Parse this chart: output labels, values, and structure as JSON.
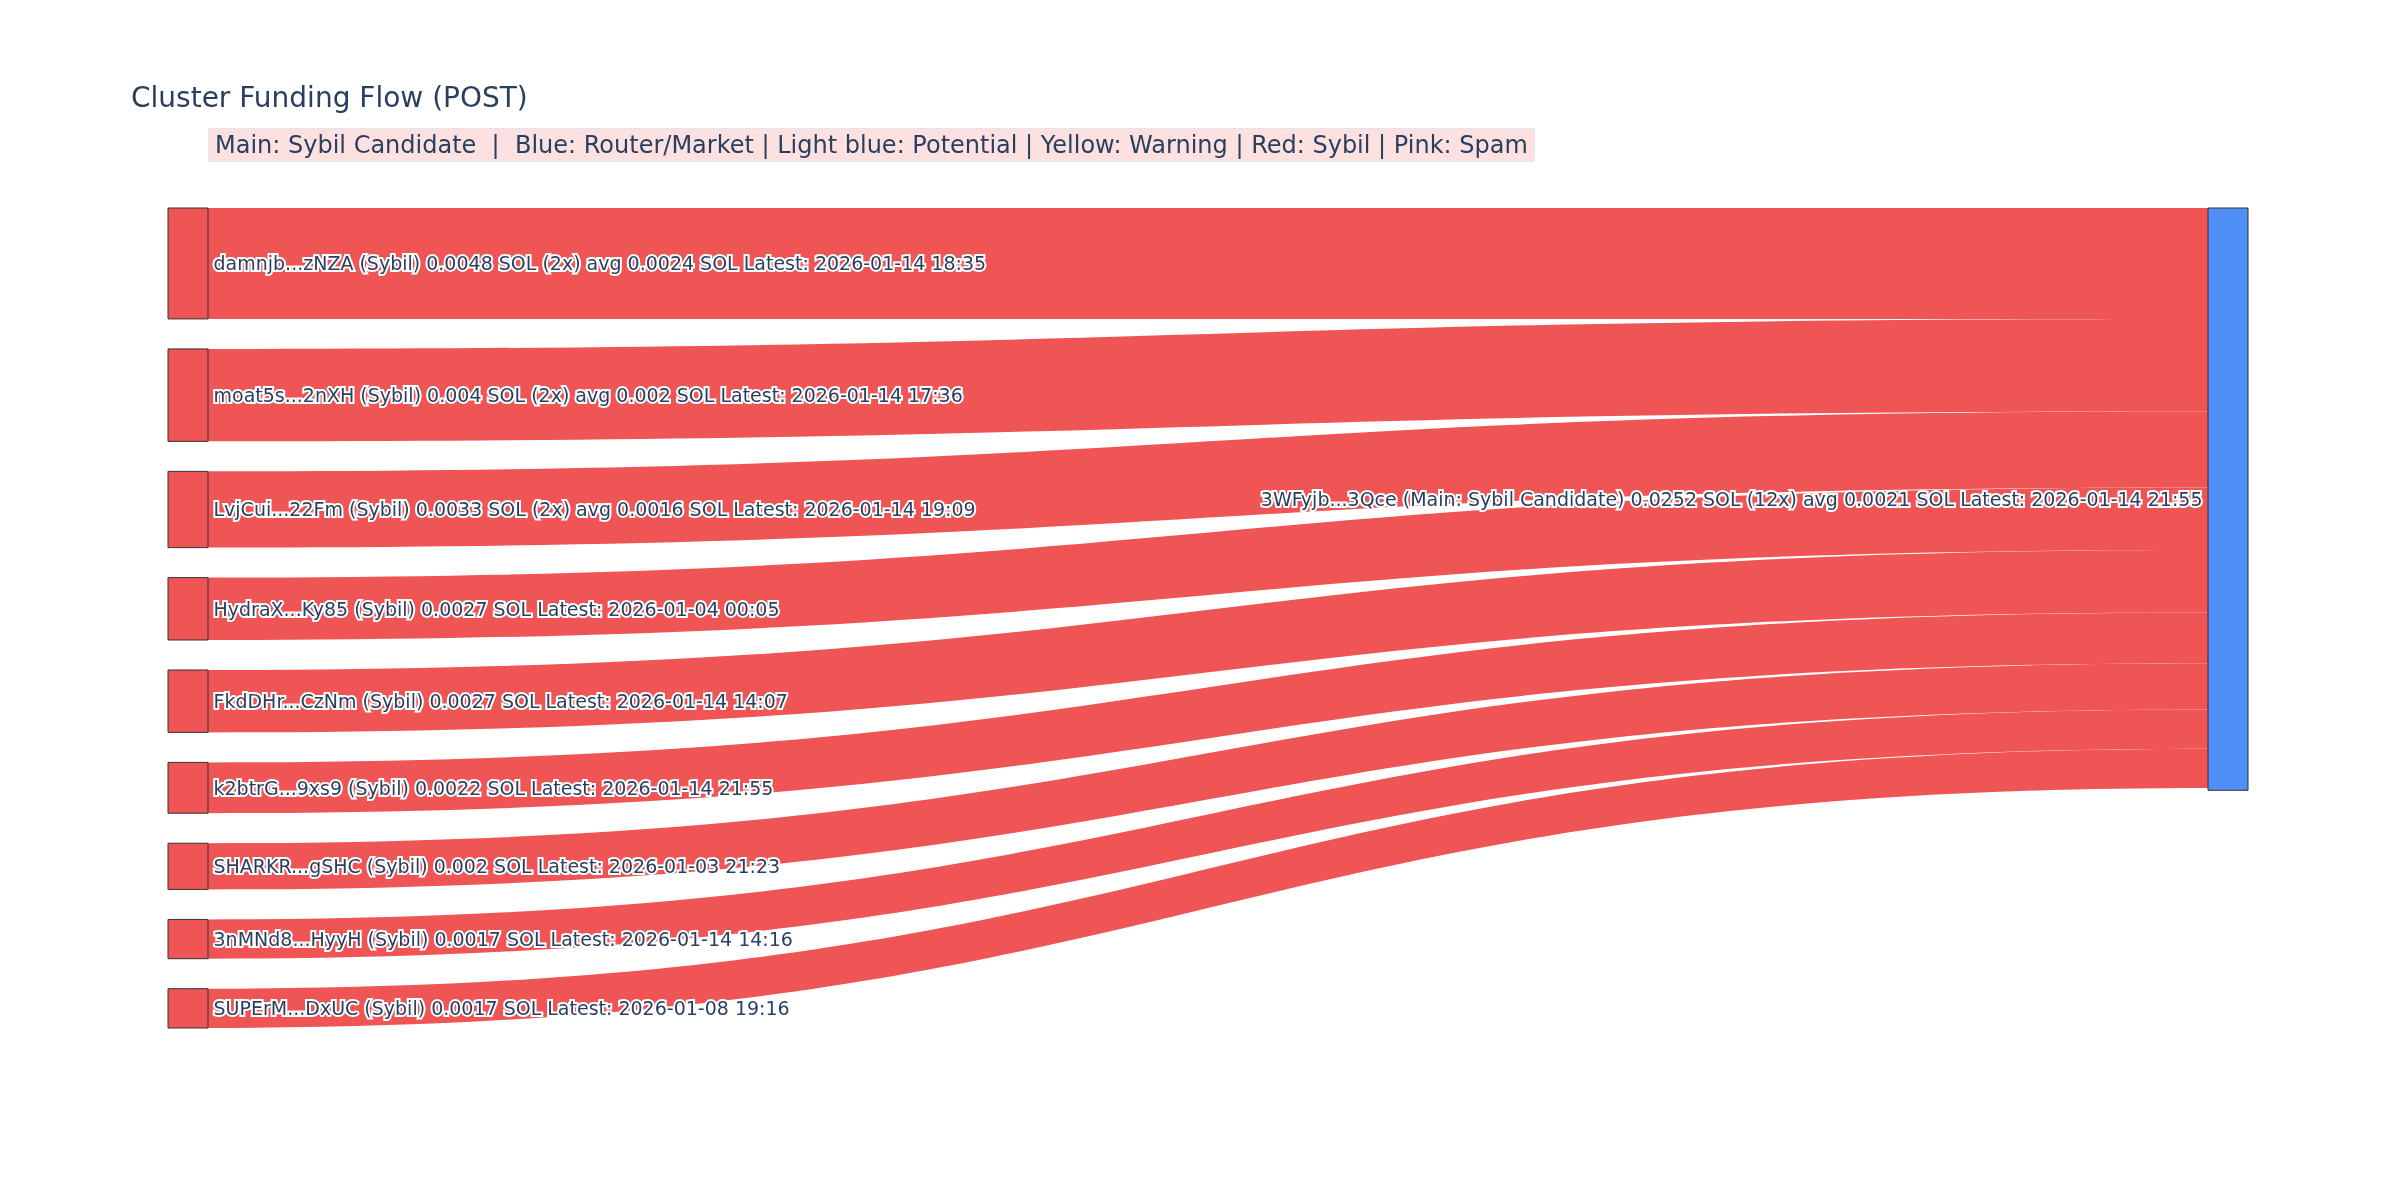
{
  "chart_data": {
    "type": "other",
    "title": "Cluster Funding Flow (POST)",
    "annotations": [
      "Main: Sybil Candidate  |  Blue: Router/Market | Light blue: Potential | Yellow: Warning | Red: Sybil | Pink: Spam"
    ],
    "categories": [
      "damnjb...zNZA (Sybil)",
      "moat5s...2nXH (Sybil)",
      "LvjCui...22Fm (Sybil)",
      "HydraX...Ky85 (Sybil)",
      "FkdDHr...CzNm (Sybil)",
      "k2btrG...9xs9 (Sybil)",
      "SHARKR...gSHC (Sybil)",
      "3nMNd8...HyyH (Sybil)",
      "SUPErM...DxUC (Sybil)",
      "3WFyjb...3Qce (Main: Sybil Candidate)"
    ],
    "values": [
      0.0048,
      0.004,
      0.0033,
      0.0027,
      0.0027,
      0.0022,
      0.002,
      0.0017,
      0.0017,
      0.0252
    ],
    "value_labels": [
      "0.0048 SOL (2x) avg 0.0024 SOL Latest: 2026-01-14 18:35",
      "0.004 SOL (2x) avg 0.002 SOL Latest: 2026-01-14 17:36",
      "0.0033 SOL (2x) avg 0.0016 SOL Latest: 2026-01-14 19:09",
      "0.0027 SOL Latest: 2026-01-04 00:05",
      "0.0027 SOL Latest: 2026-01-14 14:07",
      "0.0022 SOL Latest: 2026-01-14 21:55",
      "0.002 SOL Latest: 2026-01-03 21:23",
      "0.0017 SOL Latest: 2026-01-14 14:16",
      "0.0017 SOL Latest: 2026-01-08 19:16",
      "0.0252 SOL (12x) avg 0.0021 SOL Latest: 2026-01-14 21:55"
    ],
    "colors": [
      "#ef5555",
      "#ef5555",
      "#ef5555",
      "#ef5555",
      "#ef5555",
      "#ef5555",
      "#ef5555",
      "#ef5555",
      "#ef5555",
      "#4f8ef5"
    ]
  }
}
